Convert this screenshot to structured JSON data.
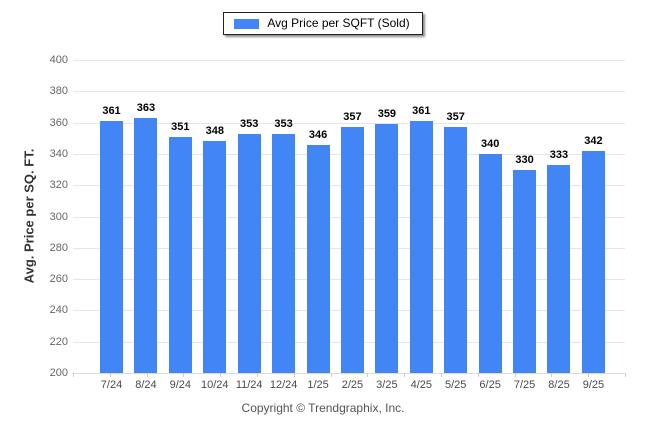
{
  "legend": {
    "label": "Avg Price per SQFT (Sold)",
    "swatch_color": "#4285f4"
  },
  "chart_data": {
    "type": "bar",
    "title": "",
    "series_name": "Avg Price per SQFT (Sold)",
    "categories": [
      "7/24",
      "8/24",
      "9/24",
      "10/24",
      "11/24",
      "12/24",
      "1/25",
      "2/25",
      "3/25",
      "4/25",
      "5/25",
      "6/25",
      "7/25",
      "8/25",
      "9/25"
    ],
    "values": [
      361,
      363,
      351,
      348,
      353,
      353,
      346,
      357,
      359,
      361,
      357,
      340,
      330,
      333,
      342
    ],
    "xlabel": "",
    "ylabel": "Avg. Price per SQ. FT.",
    "ylim": [
      200,
      400
    ],
    "ytick_step": 20,
    "yticks": [
      200,
      220,
      240,
      260,
      280,
      300,
      320,
      340,
      360,
      380,
      400
    ],
    "grid": true,
    "legend_position": "top-center",
    "value_labels": true,
    "bar_color": "#4285f4",
    "gridline_color": "#e6e6e6"
  },
  "footer": {
    "copyright": "Copyright © Trendgraphix, Inc."
  },
  "colors": {
    "bar": "#4285f4",
    "background": "#ffffff",
    "ytick_text": "#666666",
    "xtick_text": "#4a4a4a",
    "value_text": "#000000",
    "gridline": "#e6e6e6",
    "legend_border": "#222222"
  }
}
